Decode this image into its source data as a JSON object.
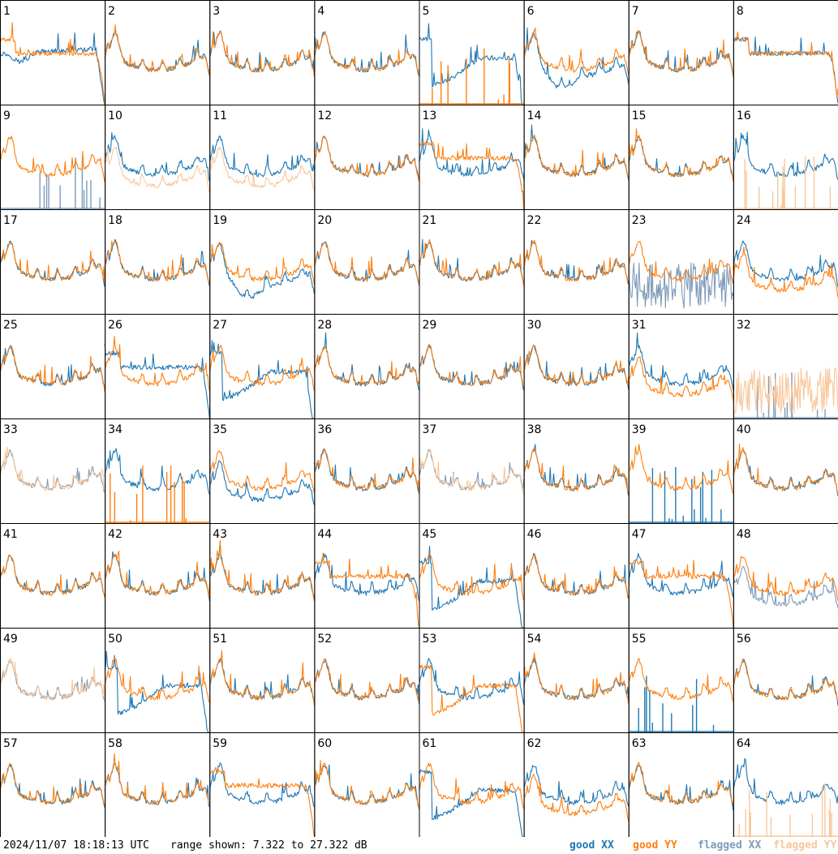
{
  "footer": {
    "timestamp": "2024/11/07 18:18:13 UTC",
    "range_text": "range shown: 7.322 to 27.322 dB",
    "legend": [
      "good XX",
      "good YY",
      "flagged XX",
      "flagged YY"
    ]
  },
  "colors": {
    "good_xx": "#1f77b4",
    "good_yy": "#ff7f0e",
    "flagged_xx": "#7f9bb8",
    "flagged_yy": "#f8c79a"
  },
  "chart_data": {
    "type": "line",
    "layout": "8x8 small multiples",
    "ylim": [
      7.322,
      27.322
    ],
    "yunit": "dB",
    "panels": [
      {
        "label": "1",
        "xx": "good",
        "yy": "good",
        "xx_shape": "hump",
        "yy_shape": "rolloff"
      },
      {
        "label": "2",
        "xx": "good",
        "yy": "good",
        "xx_shape": "normal",
        "yy_shape": "normal"
      },
      {
        "label": "3",
        "xx": "good",
        "yy": "good",
        "xx_shape": "normal",
        "yy_shape": "normal"
      },
      {
        "label": "4",
        "xx": "good",
        "yy": "good",
        "xx_shape": "normal",
        "yy_shape": "normal"
      },
      {
        "label": "5",
        "xx": "good",
        "yy": "good",
        "xx_shape": "bowl",
        "yy_shape": "spikes"
      },
      {
        "label": "6",
        "xx": "good",
        "yy": "good",
        "xx_shape": "dip",
        "yy_shape": "normal"
      },
      {
        "label": "7",
        "xx": "good",
        "yy": "good",
        "xx_shape": "normal",
        "yy_shape": "normal"
      },
      {
        "label": "8",
        "xx": "good",
        "yy": "good",
        "xx_shape": "rolloff",
        "yy_shape": "rolloff"
      },
      {
        "label": "9",
        "xx": "flagged",
        "yy": "good",
        "xx_shape": "spikes",
        "yy_shape": "normal"
      },
      {
        "label": "10",
        "xx": "good",
        "yy": "flagged",
        "xx_shape": "normal",
        "yy_shape": "low"
      },
      {
        "label": "11",
        "xx": "good",
        "yy": "flagged",
        "xx_shape": "normal",
        "yy_shape": "low"
      },
      {
        "label": "12",
        "xx": "good",
        "yy": "good",
        "xx_shape": "normal",
        "yy_shape": "normal"
      },
      {
        "label": "13",
        "xx": "good",
        "yy": "good",
        "xx_shape": "normal",
        "yy_shape": "rolloff"
      },
      {
        "label": "14",
        "xx": "good",
        "yy": "good",
        "xx_shape": "normal",
        "yy_shape": "normal"
      },
      {
        "label": "15",
        "xx": "good",
        "yy": "good",
        "xx_shape": "normal",
        "yy_shape": "normal"
      },
      {
        "label": "16",
        "xx": "good",
        "yy": "flagged",
        "xx_shape": "normal",
        "yy_shape": "spikes"
      },
      {
        "label": "17",
        "xx": "good",
        "yy": "good",
        "xx_shape": "normal",
        "yy_shape": "normal"
      },
      {
        "label": "18",
        "xx": "good",
        "yy": "good",
        "xx_shape": "normal",
        "yy_shape": "normal"
      },
      {
        "label": "19",
        "xx": "good",
        "yy": "good",
        "xx_shape": "dip",
        "yy_shape": "normal"
      },
      {
        "label": "20",
        "xx": "good",
        "yy": "good",
        "xx_shape": "normal",
        "yy_shape": "normal"
      },
      {
        "label": "21",
        "xx": "good",
        "yy": "good",
        "xx_shape": "normal",
        "yy_shape": "normal"
      },
      {
        "label": "22",
        "xx": "good",
        "yy": "good",
        "xx_shape": "normal",
        "yy_shape": "normal"
      },
      {
        "label": "23",
        "xx": "flagged",
        "yy": "good",
        "xx_shape": "noise",
        "yy_shape": "normal"
      },
      {
        "label": "24",
        "xx": "good",
        "yy": "good",
        "xx_shape": "normal",
        "yy_shape": "low"
      },
      {
        "label": "25",
        "xx": "good",
        "yy": "good",
        "xx_shape": "normal",
        "yy_shape": "normal"
      },
      {
        "label": "26",
        "xx": "good",
        "yy": "good",
        "xx_shape": "rolloff",
        "yy_shape": "normal"
      },
      {
        "label": "27",
        "xx": "good",
        "yy": "good",
        "xx_shape": "bowl",
        "yy_shape": "normal"
      },
      {
        "label": "28",
        "xx": "good",
        "yy": "good",
        "xx_shape": "normal",
        "yy_shape": "normal"
      },
      {
        "label": "29",
        "xx": "good",
        "yy": "good",
        "xx_shape": "normal",
        "yy_shape": "normal"
      },
      {
        "label": "30",
        "xx": "good",
        "yy": "good",
        "xx_shape": "normal",
        "yy_shape": "normal"
      },
      {
        "label": "31",
        "xx": "good",
        "yy": "good",
        "xx_shape": "normal",
        "yy_shape": "low"
      },
      {
        "label": "32",
        "xx": "flagged",
        "yy": "flagged",
        "xx_shape": "spikes",
        "yy_shape": "noise"
      },
      {
        "label": "33",
        "xx": "flagged",
        "yy": "flagged",
        "xx_shape": "normal",
        "yy_shape": "normal"
      },
      {
        "label": "34",
        "xx": "good",
        "yy": "good",
        "xx_shape": "normal",
        "yy_shape": "spikes"
      },
      {
        "label": "35",
        "xx": "good",
        "yy": "good",
        "xx_shape": "low",
        "yy_shape": "normal"
      },
      {
        "label": "36",
        "xx": "good",
        "yy": "good",
        "xx_shape": "normal",
        "yy_shape": "normal"
      },
      {
        "label": "37",
        "xx": "flagged",
        "yy": "flagged",
        "xx_shape": "normal",
        "yy_shape": "normal"
      },
      {
        "label": "38",
        "xx": "good",
        "yy": "good",
        "xx_shape": "normal",
        "yy_shape": "normal"
      },
      {
        "label": "39",
        "xx": "good",
        "yy": "good",
        "xx_shape": "spikes",
        "yy_shape": "normal"
      },
      {
        "label": "40",
        "xx": "good",
        "yy": "good",
        "xx_shape": "normal",
        "yy_shape": "normal"
      },
      {
        "label": "41",
        "xx": "good",
        "yy": "good",
        "xx_shape": "normal",
        "yy_shape": "normal"
      },
      {
        "label": "42",
        "xx": "good",
        "yy": "good",
        "xx_shape": "normal",
        "yy_shape": "normal"
      },
      {
        "label": "43",
        "xx": "good",
        "yy": "good",
        "xx_shape": "normal",
        "yy_shape": "normal"
      },
      {
        "label": "44",
        "xx": "good",
        "yy": "good",
        "xx_shape": "normal",
        "yy_shape": "rolloff"
      },
      {
        "label": "45",
        "xx": "good",
        "yy": "good",
        "xx_shape": "bowl",
        "yy_shape": "normal"
      },
      {
        "label": "46",
        "xx": "good",
        "yy": "good",
        "xx_shape": "normal",
        "yy_shape": "normal"
      },
      {
        "label": "47",
        "xx": "good",
        "yy": "good",
        "xx_shape": "normal",
        "yy_shape": "rolloff"
      },
      {
        "label": "48",
        "xx": "flagged",
        "yy": "good",
        "xx_shape": "low",
        "yy_shape": "normal"
      },
      {
        "label": "49",
        "xx": "flagged",
        "yy": "flagged",
        "xx_shape": "normal",
        "yy_shape": "normal"
      },
      {
        "label": "50",
        "xx": "good",
        "yy": "good",
        "xx_shape": "bowl",
        "yy_shape": "normal"
      },
      {
        "label": "51",
        "xx": "good",
        "yy": "good",
        "xx_shape": "normal",
        "yy_shape": "normal"
      },
      {
        "label": "52",
        "xx": "good",
        "yy": "good",
        "xx_shape": "normal",
        "yy_shape": "normal"
      },
      {
        "label": "53",
        "xx": "good",
        "yy": "good",
        "xx_shape": "normal",
        "yy_shape": "bowl"
      },
      {
        "label": "54",
        "xx": "good",
        "yy": "good",
        "xx_shape": "normal",
        "yy_shape": "normal"
      },
      {
        "label": "55",
        "xx": "good",
        "yy": "good",
        "xx_shape": "spikes",
        "yy_shape": "normal"
      },
      {
        "label": "56",
        "xx": "good",
        "yy": "good",
        "xx_shape": "normal",
        "yy_shape": "normal"
      },
      {
        "label": "57",
        "xx": "good",
        "yy": "good",
        "xx_shape": "normal",
        "yy_shape": "normal"
      },
      {
        "label": "58",
        "xx": "good",
        "yy": "good",
        "xx_shape": "normal",
        "yy_shape": "normal"
      },
      {
        "label": "59",
        "xx": "good",
        "yy": "good",
        "xx_shape": "normal",
        "yy_shape": "rolloff"
      },
      {
        "label": "60",
        "xx": "good",
        "yy": "good",
        "xx_shape": "normal",
        "yy_shape": "normal"
      },
      {
        "label": "61",
        "xx": "good",
        "yy": "good",
        "xx_shape": "bowl",
        "yy_shape": "normal"
      },
      {
        "label": "62",
        "xx": "good",
        "yy": "good",
        "xx_shape": "normal",
        "yy_shape": "low"
      },
      {
        "label": "63",
        "xx": "good",
        "yy": "good",
        "xx_shape": "normal",
        "yy_shape": "normal"
      },
      {
        "label": "64",
        "xx": "good",
        "yy": "flagged",
        "xx_shape": "normal",
        "yy_shape": "spikes"
      }
    ]
  }
}
